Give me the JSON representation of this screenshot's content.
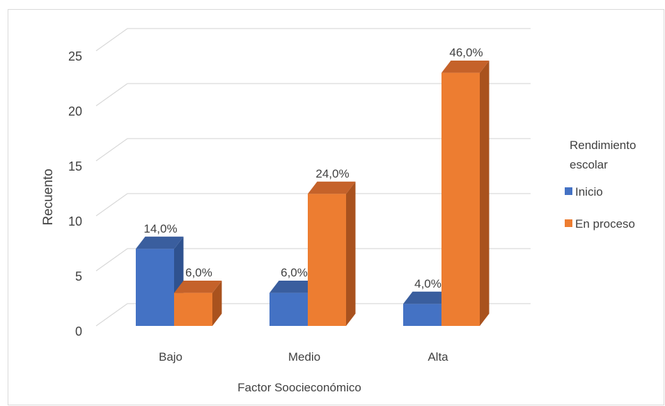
{
  "chart_data": {
    "type": "bar",
    "categories": [
      "Bajo",
      "Medio",
      "Alta"
    ],
    "series": [
      {
        "name": "Inicio",
        "values": [
          7,
          3,
          2
        ],
        "labels": [
          "14,0%",
          "6,0%",
          "4,0%"
        ],
        "color": "#4472C4",
        "side_color": "#2F528F",
        "top_color": "#3A5E9E"
      },
      {
        "name": "En proceso",
        "values": [
          3,
          12,
          23
        ],
        "labels": [
          "6,0%",
          "24,0%",
          "46,0%"
        ],
        "color": "#ED7D31",
        "side_color": "#A9521E",
        "top_color": "#C5622A"
      }
    ],
    "xlabel": "Factor Soocieconómico",
    "ylabel": "Recuento",
    "ylim": [
      0,
      25
    ],
    "yticks": [
      "0",
      "5",
      "10",
      "15",
      "20",
      "25"
    ],
    "legend_title": "Rendimiento escolar",
    "legend_position": "right",
    "grid": true
  }
}
